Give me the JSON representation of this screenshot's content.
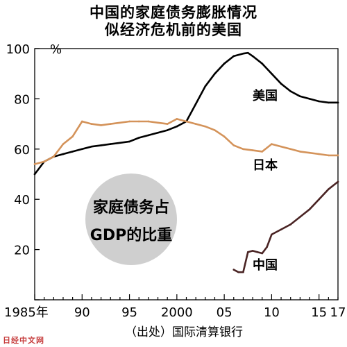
{
  "chart_data": {
    "type": "line",
    "title": "中国的家庭债务膨胀情况",
    "subtitle": "似经济危机前的美国",
    "yunit": "%",
    "ylim": [
      0,
      100
    ],
    "yticks": [
      0,
      20,
      40,
      60,
      80,
      100
    ],
    "ytick_labels": [
      "",
      "20",
      "40",
      "60",
      "80",
      "100"
    ],
    "xlim": [
      1985,
      2017
    ],
    "xtick_values": [
      1985,
      1990,
      1995,
      2000,
      2005,
      2010,
      2015,
      2017
    ],
    "xtick_labels": [
      "1985年",
      "90",
      "95",
      "2000",
      "05",
      "10",
      "15",
      "17"
    ],
    "annotation": {
      "line1": "家庭债务占",
      "line2": "GDP的比重"
    },
    "source": "（出处）国际清算银行",
    "series": [
      {
        "name": "美国",
        "color": "#000000",
        "x": [
          1985,
          1986,
          1987,
          1988,
          1989,
          1990,
          1991,
          1992,
          1993,
          1994,
          1995,
          1996,
          1997,
          1998,
          1999,
          2000,
          2001,
          2002,
          2003,
          2004,
          2005,
          2006,
          2007,
          2007.5,
          2008,
          2009,
          2010,
          2011,
          2012,
          2013,
          2014,
          2015,
          2016,
          2017
        ],
        "values": [
          50,
          55,
          57,
          58,
          59,
          60,
          61,
          61.5,
          62,
          62.5,
          63,
          64.5,
          65.5,
          66.5,
          67.5,
          69,
          71,
          78,
          85,
          90,
          94,
          97,
          98,
          98.3,
          97,
          94,
          90,
          86,
          83,
          81,
          80,
          79,
          78.5,
          78.5
        ]
      },
      {
        "name": "日本",
        "color": "#d4935a",
        "x": [
          1985,
          1986,
          1987,
          1988,
          1989,
          1990,
          1991,
          1992,
          1993,
          1994,
          1995,
          1996,
          1997,
          1998,
          1999,
          2000,
          2001,
          2002,
          2003,
          2004,
          2005,
          2006,
          2007,
          2008,
          2009,
          2010,
          2011,
          2012,
          2013,
          2014,
          2015,
          2016,
          2017
        ],
        "values": [
          54,
          55,
          57,
          62,
          65,
          71,
          70,
          69.5,
          70,
          70.5,
          71,
          71,
          71,
          70.5,
          70,
          72,
          71,
          70,
          69,
          67.5,
          65,
          61.5,
          60,
          59.5,
          59,
          62,
          61,
          60,
          59,
          58.5,
          58,
          57.5,
          57.5
        ]
      },
      {
        "name": "中国",
        "color": "#4a2424",
        "x": [
          2006,
          2006.5,
          2007,
          2007.5,
          2008,
          2008.5,
          2009,
          2009.5,
          2010,
          2011,
          2012,
          2013,
          2014,
          2015,
          2016,
          2017
        ],
        "values": [
          12,
          11,
          11,
          19,
          19.5,
          19,
          18.5,
          21,
          26,
          28,
          30,
          33,
          36,
          40,
          44,
          47
        ]
      }
    ]
  },
  "watermark": "日经中文网"
}
